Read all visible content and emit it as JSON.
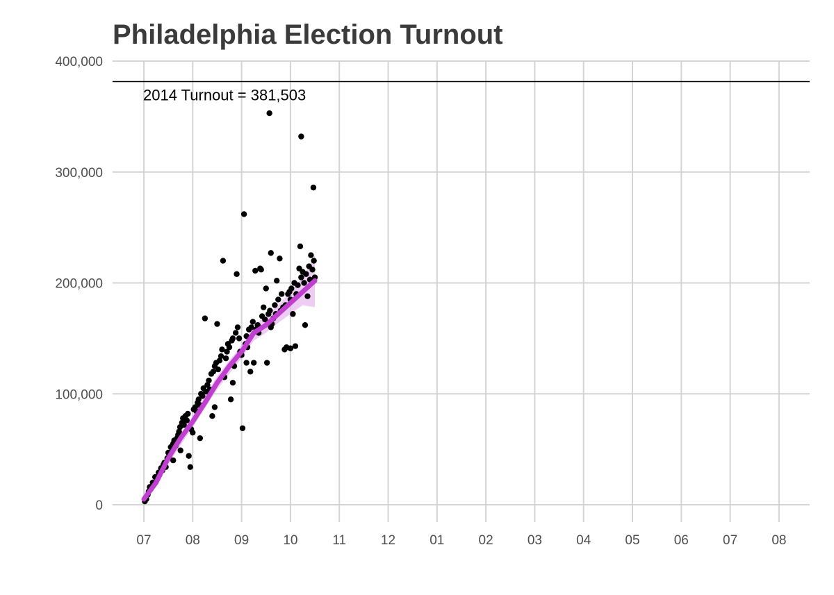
{
  "chart_data": {
    "type": "scatter",
    "title": "Philadelphia Election Turnout",
    "xlabel": "",
    "ylabel": "",
    "ylim": [
      0,
      400000
    ],
    "y_ticks": [
      0,
      100000,
      200000,
      300000,
      400000
    ],
    "y_tick_labels": [
      "0",
      "100,000",
      "200,000",
      "300,000",
      "400,000"
    ],
    "x_tick_labels": [
      "07",
      "08",
      "09",
      "10",
      "11",
      "12",
      "01",
      "02",
      "03",
      "04",
      "05",
      "06",
      "07",
      "08"
    ],
    "x_units": "months",
    "grid": true,
    "reference_line": {
      "value": 381503,
      "label": "2014 Turnout = 381,503"
    },
    "colors": {
      "points": "#000000",
      "trend": "#c03fcf",
      "band": "#e6b8ee",
      "grid": "#d4d4d4",
      "reference": "#000000"
    },
    "points": [
      [
        0.02,
        3000
      ],
      [
        0.05,
        5000
      ],
      [
        0.08,
        9000
      ],
      [
        0.1,
        12000
      ],
      [
        0.12,
        16000
      ],
      [
        0.14,
        14000
      ],
      [
        0.18,
        20000
      ],
      [
        0.2,
        19000
      ],
      [
        0.23,
        25000
      ],
      [
        0.26,
        24000
      ],
      [
        0.3,
        29000
      ],
      [
        0.32,
        27000
      ],
      [
        0.35,
        33000
      ],
      [
        0.38,
        31000
      ],
      [
        0.4,
        36000
      ],
      [
        0.42,
        38000
      ],
      [
        0.45,
        34000
      ],
      [
        0.48,
        42000
      ],
      [
        0.5,
        47000
      ],
      [
        0.52,
        44000
      ],
      [
        0.55,
        52000
      ],
      [
        0.58,
        50000
      ],
      [
        0.6,
        55000
      ],
      [
        0.62,
        58000
      ],
      [
        0.65,
        53000
      ],
      [
        0.68,
        60000
      ],
      [
        0.7,
        63000
      ],
      [
        0.72,
        66000
      ],
      [
        0.74,
        70000
      ],
      [
        0.75,
        49000
      ],
      [
        0.78,
        74000
      ],
      [
        0.8,
        78000
      ],
      [
        0.82,
        72000
      ],
      [
        0.85,
        80000
      ],
      [
        0.88,
        76000
      ],
      [
        0.9,
        82000
      ],
      [
        0.92,
        44000
      ],
      [
        0.95,
        34000
      ],
      [
        0.97,
        68000
      ],
      [
        1.0,
        65000
      ],
      [
        1.02,
        86000
      ],
      [
        1.05,
        88000
      ],
      [
        1.08,
        84000
      ],
      [
        1.1,
        92000
      ],
      [
        1.12,
        95000
      ],
      [
        1.14,
        90000
      ],
      [
        1.17,
        100000
      ],
      [
        1.2,
        98000
      ],
      [
        1.22,
        105000
      ],
      [
        1.25,
        168000
      ],
      [
        1.27,
        102000
      ],
      [
        1.3,
        108000
      ],
      [
        1.33,
        112000
      ],
      [
        1.35,
        104000
      ],
      [
        1.38,
        118000
      ],
      [
        1.4,
        80000
      ],
      [
        1.42,
        120000
      ],
      [
        1.45,
        125000
      ],
      [
        1.48,
        128000
      ],
      [
        1.5,
        163000
      ],
      [
        1.52,
        122000
      ],
      [
        1.55,
        130000
      ],
      [
        1.58,
        134000
      ],
      [
        1.6,
        140000
      ],
      [
        1.62,
        220000
      ],
      [
        1.65,
        115000
      ],
      [
        1.68,
        132000
      ],
      [
        1.7,
        138000
      ],
      [
        1.72,
        145000
      ],
      [
        1.75,
        142000
      ],
      [
        1.78,
        95000
      ],
      [
        1.8,
        148000
      ],
      [
        1.82,
        150000
      ],
      [
        1.85,
        125000
      ],
      [
        1.88,
        155000
      ],
      [
        1.9,
        208000
      ],
      [
        1.92,
        160000
      ],
      [
        1.95,
        150000
      ],
      [
        1.97,
        138000
      ],
      [
        2.0,
        135000
      ],
      [
        2.02,
        69000
      ],
      [
        2.05,
        262000
      ],
      [
        2.08,
        145000
      ],
      [
        2.1,
        152000
      ],
      [
        2.12,
        142000
      ],
      [
        2.15,
        158000
      ],
      [
        2.18,
        120000
      ],
      [
        2.2,
        160000
      ],
      [
        2.23,
        165000
      ],
      [
        2.25,
        128000
      ],
      [
        2.28,
        211000
      ],
      [
        2.3,
        158000
      ],
      [
        2.33,
        162000
      ],
      [
        2.35,
        155000
      ],
      [
        2.38,
        213000
      ],
      [
        2.4,
        212000
      ],
      [
        2.42,
        170000
      ],
      [
        2.45,
        178000
      ],
      [
        2.48,
        167000
      ],
      [
        2.5,
        195000
      ],
      [
        2.52,
        128000
      ],
      [
        2.55,
        172000
      ],
      [
        2.58,
        175000
      ],
      [
        2.6,
        227000
      ],
      [
        2.62,
        163000
      ],
      [
        2.65,
        168000
      ],
      [
        2.68,
        180000
      ],
      [
        2.7,
        172000
      ],
      [
        2.72,
        202000
      ],
      [
        2.75,
        185000
      ],
      [
        2.78,
        222000
      ],
      [
        2.8,
        175000
      ],
      [
        2.82,
        190000
      ],
      [
        2.85,
        178000
      ],
      [
        2.88,
        140000
      ],
      [
        2.9,
        180000
      ],
      [
        2.92,
        142000
      ],
      [
        2.95,
        190000
      ],
      [
        2.98,
        192000
      ],
      [
        3.0,
        185000
      ],
      [
        3.02,
        195000
      ],
      [
        3.05,
        172000
      ],
      [
        3.08,
        200000
      ],
      [
        3.1,
        143000
      ],
      [
        3.12,
        190000
      ],
      [
        3.15,
        198000
      ],
      [
        3.18,
        213000
      ],
      [
        3.2,
        233000
      ],
      [
        3.22,
        205000
      ],
      [
        3.25,
        210000
      ],
      [
        3.28,
        200000
      ],
      [
        3.3,
        162000
      ],
      [
        3.32,
        208000
      ],
      [
        3.35,
        188000
      ],
      [
        3.38,
        215000
      ],
      [
        3.4,
        203000
      ],
      [
        3.42,
        225000
      ],
      [
        3.45,
        212000
      ],
      [
        3.48,
        220000
      ],
      [
        3.5,
        205000
      ],
      [
        3.0,
        141000
      ],
      [
        3.22,
        332000
      ],
      [
        2.57,
        353000
      ],
      [
        3.47,
        286000
      ],
      [
        0.6,
        40000
      ],
      [
        1.15,
        60000
      ],
      [
        1.45,
        88000
      ],
      [
        1.82,
        110000
      ],
      [
        2.1,
        128000
      ],
      [
        2.6,
        160000
      ]
    ],
    "trend": [
      [
        0.0,
        5000
      ],
      [
        0.25,
        20000
      ],
      [
        0.5,
        42000
      ],
      [
        0.75,
        60000
      ],
      [
        1.0,
        75000
      ],
      [
        1.25,
        92000
      ],
      [
        1.5,
        110000
      ],
      [
        1.75,
        125000
      ],
      [
        2.0,
        138000
      ],
      [
        2.25,
        155000
      ],
      [
        2.5,
        162000
      ],
      [
        2.75,
        172000
      ],
      [
        3.0,
        182000
      ],
      [
        3.25,
        192000
      ],
      [
        3.5,
        202000
      ]
    ],
    "band": [
      [
        0.0,
        10000,
        0
      ],
      [
        0.5,
        47000,
        37000
      ],
      [
        1.0,
        80000,
        70000
      ],
      [
        1.5,
        116000,
        104000
      ],
      [
        2.0,
        144000,
        132000
      ],
      [
        2.25,
        162000,
        148000
      ],
      [
        2.5,
        170000,
        155000
      ],
      [
        2.75,
        180000,
        164000
      ],
      [
        3.0,
        192000,
        172000
      ],
      [
        3.25,
        205000,
        180000
      ],
      [
        3.5,
        225000,
        178000
      ]
    ]
  }
}
